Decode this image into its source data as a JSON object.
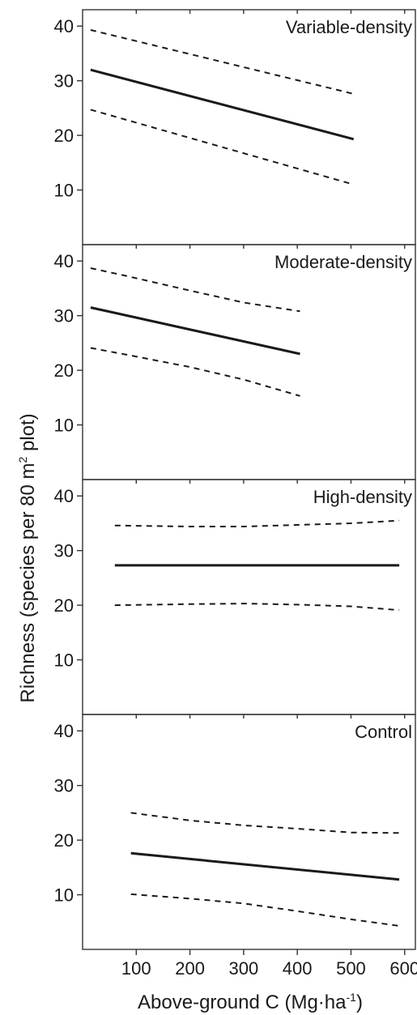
{
  "chart_data": {
    "type": "line",
    "xlabel": "Above-ground C (Mg·ha",
    "xlabel_sup": "-1",
    "xlabel_end": ")",
    "ylabel": "Richness (species per 80 m",
    "ylabel_sup": "2",
    "ylabel_end": " plot)",
    "xlim": [
      0,
      620
    ],
    "ylim": [
      0,
      43
    ],
    "x_ticks": [
      100,
      200,
      300,
      400,
      500,
      600
    ],
    "y_ticks": [
      10,
      20,
      30,
      40
    ],
    "panels": [
      {
        "label": "Variable-density",
        "series": [
          {
            "style": "solid",
            "x": [
              15,
              505
            ],
            "y": [
              32.0,
              19.3
            ]
          },
          {
            "style": "dashed",
            "x": [
              15,
              505
            ],
            "y": [
              39.3,
              27.6
            ]
          },
          {
            "style": "dashed",
            "x": [
              15,
              505
            ],
            "y": [
              24.7,
              11.0
            ]
          }
        ]
      },
      {
        "label": "Moderate-density",
        "series": [
          {
            "style": "solid",
            "x": [
              15,
              405
            ],
            "y": [
              31.5,
              23.0
            ]
          },
          {
            "style": "dashed",
            "x": [
              15,
              80,
              200,
              300,
              405
            ],
            "y": [
              38.7,
              37.3,
              34.6,
              32.4,
              30.8
            ]
          },
          {
            "style": "dashed",
            "x": [
              15,
              80,
              200,
              300,
              405
            ],
            "y": [
              24.1,
              22.9,
              20.6,
              18.3,
              15.3
            ]
          }
        ]
      },
      {
        "label": "High-density",
        "series": [
          {
            "style": "solid",
            "x": [
              60,
              590
            ],
            "y": [
              27.3,
              27.3
            ]
          },
          {
            "style": "dashed",
            "x": [
              60,
              200,
              300,
              400,
              500,
              590
            ],
            "y": [
              34.6,
              34.4,
              34.4,
              34.7,
              35.0,
              35.5
            ]
          },
          {
            "style": "dashed",
            "x": [
              60,
              200,
              300,
              400,
              500,
              590
            ],
            "y": [
              20.0,
              20.2,
              20.3,
              20.1,
              19.8,
              19.1
            ]
          }
        ]
      },
      {
        "label": "Control",
        "series": [
          {
            "style": "solid",
            "x": [
              90,
              590
            ],
            "y": [
              17.6,
              12.8
            ]
          },
          {
            "style": "dashed",
            "x": [
              90,
              200,
              300,
              400,
              500,
              590
            ],
            "y": [
              25.0,
              23.6,
              22.7,
              22.1,
              21.4,
              21.3
            ]
          },
          {
            "style": "dashed",
            "x": [
              90,
              200,
              300,
              400,
              500,
              590
            ],
            "y": [
              10.1,
              9.3,
              8.4,
              7.0,
              5.5,
              4.3
            ]
          }
        ]
      }
    ]
  }
}
